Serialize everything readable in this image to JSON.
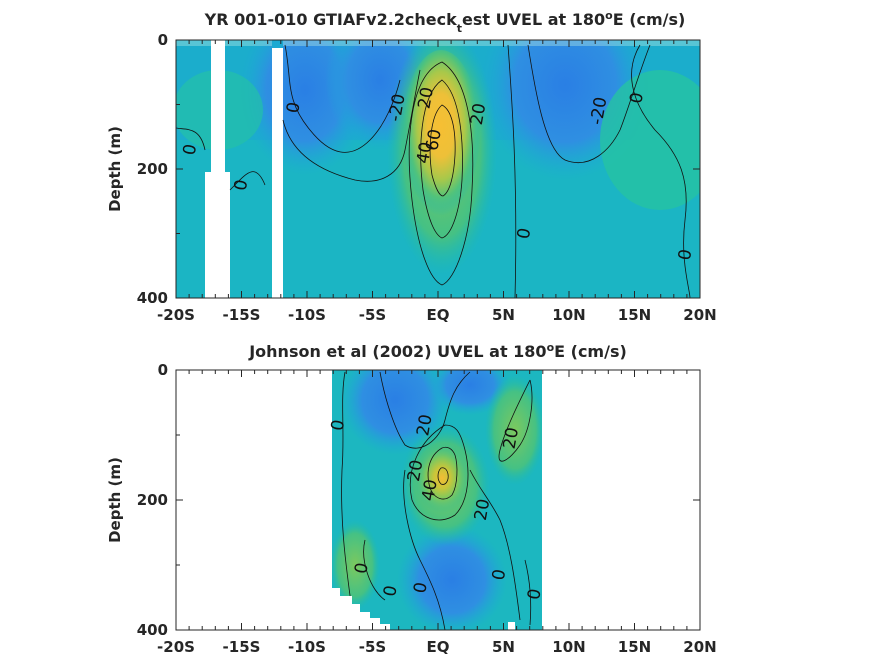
{
  "chart_data": [
    {
      "type": "heatmap",
      "title_main": "YR 001-010 GTIAFv2.2check",
      "title_sub": "t",
      "title_rest": "est UVEL at 180",
      "title_sup": "o",
      "title_end": "E (cm/s)",
      "ylabel": "Depth (m)",
      "xlim": [
        -20,
        20
      ],
      "ylim": [
        0,
        400
      ],
      "x_ticks": [
        -20,
        -15,
        -10,
        -5,
        0,
        5,
        10,
        15,
        20
      ],
      "x_tick_labels": [
        "-20S",
        "-15S",
        "-10S",
        "-5S",
        "EQ",
        "5N",
        "10N",
        "15N",
        "20N"
      ],
      "y_ticks": [
        0,
        200,
        400
      ],
      "y_tick_labels": [
        "0",
        "200",
        "400"
      ],
      "colormap": [
        "#2f80e0",
        "#1aa9d8",
        "#1fbfb0",
        "#7ac860",
        "#c7c63a",
        "#f2bf35"
      ],
      "contour_labels": [
        {
          "text": "0",
          "x": -18.9,
          "y": 170
        },
        {
          "text": "0",
          "x": -15.0,
          "y": 225
        },
        {
          "text": "0",
          "x": -11.0,
          "y": 105
        },
        {
          "text": "-20",
          "x": -3.1,
          "y": 105
        },
        {
          "text": "20",
          "x": -0.9,
          "y": 90
        },
        {
          "text": "60",
          "x": -0.3,
          "y": 155
        },
        {
          "text": "40",
          "x": -1.0,
          "y": 175
        },
        {
          "text": "20",
          "x": 3.1,
          "y": 115
        },
        {
          "text": "0",
          "x": 6.6,
          "y": 300
        },
        {
          "text": "-20",
          "x": 12.3,
          "y": 110
        },
        {
          "text": "0",
          "x": 15.2,
          "y": 90
        },
        {
          "text": "0",
          "x": 18.9,
          "y": 333
        }
      ]
    },
    {
      "type": "heatmap",
      "title_main": "Johnson et al (2002) UVEL at 180",
      "title_sup": "o",
      "title_end": "E (cm/s)",
      "ylabel": "Depth (m)",
      "xlim": [
        -20,
        20
      ],
      "ylim": [
        0,
        400
      ],
      "data_x_range": [
        -8,
        8
      ],
      "x_ticks": [
        -20,
        -15,
        -10,
        -5,
        0,
        5,
        10,
        15,
        20
      ],
      "x_tick_labels": [
        "-20S",
        "-15S",
        "-10S",
        "-5S",
        "EQ",
        "5N",
        "10N",
        "15N",
        "20N"
      ],
      "y_ticks": [
        0,
        200,
        400
      ],
      "y_tick_labels": [
        "0",
        "200",
        "400"
      ],
      "contour_labels": [
        {
          "text": "0",
          "x": -7.6,
          "y": 85
        },
        {
          "text": "20",
          "x": -1.0,
          "y": 85
        },
        {
          "text": "20",
          "x": 5.6,
          "y": 105
        },
        {
          "text": "20",
          "x": -1.7,
          "y": 155
        },
        {
          "text": "40",
          "x": -0.6,
          "y": 185
        },
        {
          "text": "20",
          "x": 3.4,
          "y": 215
        },
        {
          "text": "0",
          "x": -5.8,
          "y": 305
        },
        {
          "text": "0",
          "x": 4.7,
          "y": 315
        },
        {
          "text": "0",
          "x": -1.3,
          "y": 335
        },
        {
          "text": "0",
          "x": -3.6,
          "y": 340
        },
        {
          "text": "0",
          "x": 7.4,
          "y": 345
        }
      ]
    }
  ]
}
